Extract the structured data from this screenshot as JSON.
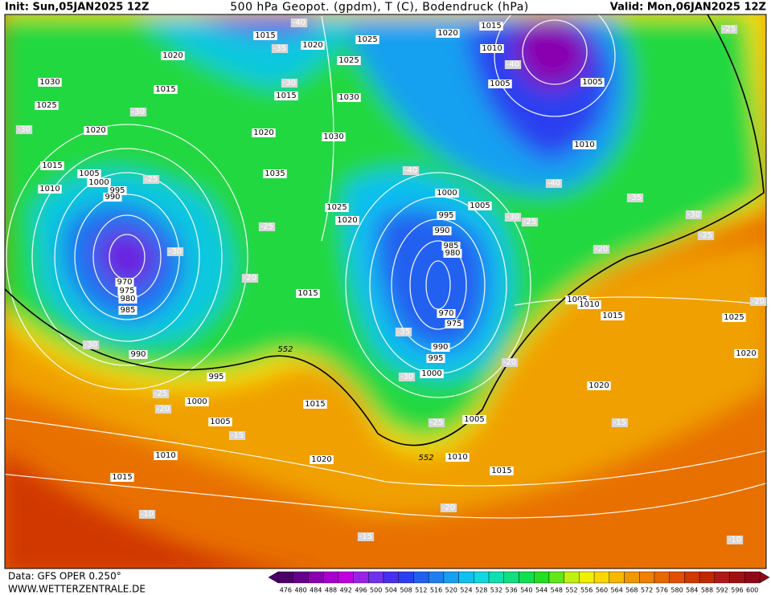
{
  "header": {
    "init": "Init: Sun,05JAN2025 12Z",
    "title": "500 hPa Geopot. (gpdm), T (C), Bodendruck (hPa)",
    "valid": "Valid: Mon,06JAN2025 12Z"
  },
  "footer": {
    "data": "Data: GFS OPER 0.250°",
    "site": "WWW.WETTERZENTRALE.DE"
  },
  "colorbar": {
    "values": [
      476,
      480,
      484,
      488,
      492,
      496,
      500,
      504,
      508,
      512,
      516,
      520,
      524,
      528,
      532,
      536,
      540,
      544,
      548,
      552,
      556,
      560,
      564,
      568,
      572,
      576,
      580,
      584,
      588,
      592,
      596,
      600
    ],
    "colors": [
      "#4a0068",
      "#66008c",
      "#8a00b0",
      "#a800cc",
      "#c000e0",
      "#9a22e8",
      "#7030ee",
      "#4a2ef0",
      "#2a40f0",
      "#2060f0",
      "#1e80f0",
      "#18a0f0",
      "#10c0f0",
      "#10d8e0",
      "#10e0b0",
      "#10e080",
      "#10e050",
      "#20e020",
      "#60e818",
      "#c0f010",
      "#f0f000",
      "#f8d800",
      "#f8b800",
      "#f09800",
      "#f08000",
      "#e86800",
      "#e05000",
      "#d03800",
      "#c02800",
      "#b01818",
      "#a01010",
      "#900818"
    ]
  },
  "isobar_labels": [
    "1015",
    "1025",
    "1020",
    "1015",
    "1010",
    "1020",
    "1020",
    "1025",
    "1030",
    "1015",
    "1015",
    "1030",
    "1005",
    "1005",
    "1025",
    "1020",
    "1020",
    "1030",
    "1010",
    "1015",
    "1005",
    "1000",
    "1035",
    "995",
    "990",
    "1010",
    "1000",
    "1005",
    "1025",
    "1020",
    "995",
    "990",
    "985",
    "980",
    "970",
    "975",
    "980",
    "985",
    "1015",
    "1005",
    "1010",
    "1015",
    "1025",
    "970",
    "975",
    "990",
    "995",
    "1000",
    "990",
    "995",
    "1000",
    "1015",
    "1005",
    "1005",
    "1020",
    "1020",
    "1010",
    "1010",
    "1020",
    "1015",
    "1015"
  ],
  "temperature_labels": [
    "-40",
    "-35",
    "-30",
    "-30",
    "-30",
    "-40",
    "-25",
    "-40",
    "-40",
    "-35",
    "-30",
    "-25",
    "-25",
    "-30",
    "-30",
    "-20",
    "-25",
    "-20",
    "-20",
    "-30",
    "-35",
    "-30",
    "-20",
    "-25",
    "-20",
    "-15",
    "-25",
    "-15",
    "-20",
    "-10",
    "-15",
    "-10",
    "-25"
  ],
  "height_labels": [
    "552",
    "552"
  ]
}
